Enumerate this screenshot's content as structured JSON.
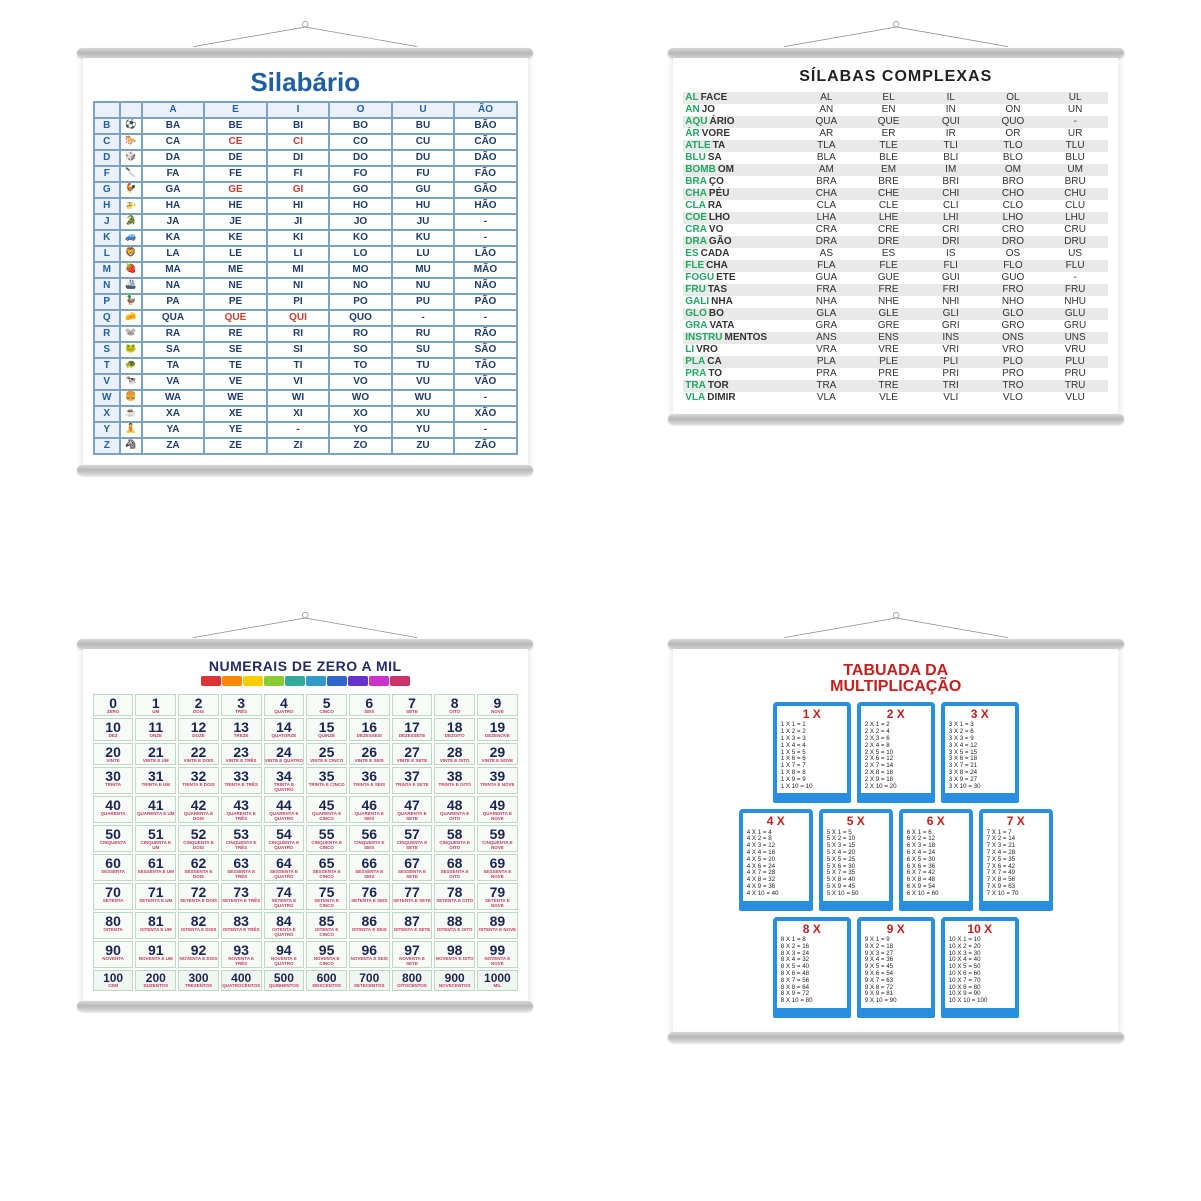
{
  "colors": {
    "background": "#ffffff",
    "rail": "#c8c8c8",
    "sil_title": "#1f5fa6",
    "sil_border": "#7aa3c7",
    "sil_text": "#1f3d6b",
    "sil_red": "#d33b2f",
    "sc_prefix": "#1fa860",
    "sc_stripe": "#e9e9e9",
    "num_title": "#232a6b",
    "num_border": "#bcd9c8",
    "num_number": "#1b2452",
    "num_word": "#c73a5f",
    "tab_title": "#c4201e",
    "tab_border": "#2a8ee0"
  },
  "silabario": {
    "title": "Silabário",
    "headers": [
      "",
      "",
      "A",
      "E",
      "I",
      "O",
      "U",
      "ÃO"
    ],
    "rows": [
      {
        "l": "B",
        "i": "⚽",
        "c": [
          "BA",
          "BE",
          "BI",
          "BO",
          "BU",
          "BÃO"
        ],
        "red": []
      },
      {
        "l": "C",
        "i": "🐎",
        "c": [
          "CA",
          "CE",
          "CI",
          "CO",
          "CU",
          "CÃO"
        ],
        "red": [
          1,
          2
        ]
      },
      {
        "l": "D",
        "i": "🎲",
        "c": [
          "DA",
          "DE",
          "DI",
          "DO",
          "DU",
          "DÃO"
        ],
        "red": []
      },
      {
        "l": "F",
        "i": "🔪",
        "c": [
          "FA",
          "FE",
          "FI",
          "FO",
          "FU",
          "FÃO"
        ],
        "red": []
      },
      {
        "l": "G",
        "i": "🐓",
        "c": [
          "GA",
          "GE",
          "GI",
          "GO",
          "GU",
          "GÃO"
        ],
        "red": [
          1,
          2
        ]
      },
      {
        "l": "H",
        "i": "🚁",
        "c": [
          "HA",
          "HE",
          "HI",
          "HO",
          "HU",
          "HÃO"
        ],
        "red": []
      },
      {
        "l": "J",
        "i": "🐊",
        "c": [
          "JA",
          "JE",
          "JI",
          "JO",
          "JU",
          "-"
        ],
        "red": []
      },
      {
        "l": "K",
        "i": "🚙",
        "c": [
          "KA",
          "KE",
          "KI",
          "KO",
          "KU",
          "-"
        ],
        "red": []
      },
      {
        "l": "L",
        "i": "🦁",
        "c": [
          "LA",
          "LE",
          "LI",
          "LO",
          "LU",
          "LÃO"
        ],
        "red": []
      },
      {
        "l": "M",
        "i": "🍓",
        "c": [
          "MA",
          "ME",
          "MI",
          "MO",
          "MU",
          "MÃO"
        ],
        "red": []
      },
      {
        "l": "N",
        "i": "🚢",
        "c": [
          "NA",
          "NE",
          "NI",
          "NO",
          "NU",
          "NÃO"
        ],
        "red": []
      },
      {
        "l": "P",
        "i": "🦆",
        "c": [
          "PA",
          "PE",
          "PI",
          "PO",
          "PU",
          "PÃO"
        ],
        "red": []
      },
      {
        "l": "Q",
        "i": "🧀",
        "c": [
          "QUA",
          "QUE",
          "QUI",
          "QUO",
          "-",
          "-"
        ],
        "red": [
          1,
          2
        ]
      },
      {
        "l": "R",
        "i": "🐭",
        "c": [
          "RA",
          "RE",
          "RI",
          "RO",
          "RU",
          "RÃO"
        ],
        "red": []
      },
      {
        "l": "S",
        "i": "🐸",
        "c": [
          "SA",
          "SE",
          "SI",
          "SO",
          "SU",
          "SÃO"
        ],
        "red": []
      },
      {
        "l": "T",
        "i": "🐢",
        "c": [
          "TA",
          "TE",
          "TI",
          "TO",
          "TU",
          "TÃO"
        ],
        "red": []
      },
      {
        "l": "V",
        "i": "🐄",
        "c": [
          "VA",
          "VE",
          "VI",
          "VO",
          "VU",
          "VÃO"
        ],
        "red": []
      },
      {
        "l": "W",
        "i": "🍔",
        "c": [
          "WA",
          "WE",
          "WI",
          "WO",
          "WU",
          "-"
        ],
        "red": []
      },
      {
        "l": "X",
        "i": "☕",
        "c": [
          "XA",
          "XE",
          "XI",
          "XO",
          "XU",
          "XÃO"
        ],
        "red": []
      },
      {
        "l": "Y",
        "i": "🧘",
        "c": [
          "YA",
          "YE",
          "-",
          "YO",
          "YU",
          "-"
        ],
        "red": []
      },
      {
        "l": "Z",
        "i": "🦓",
        "c": [
          "ZA",
          "ZE",
          "ZI",
          "ZO",
          "ZU",
          "ZÃO"
        ],
        "red": []
      }
    ]
  },
  "silabas_complexas": {
    "title": "SÍLABAS COMPLEXAS",
    "rows": [
      {
        "pre": "AL",
        "rest": "FACE",
        "syl": [
          "AL",
          "EL",
          "IL",
          "OL",
          "UL"
        ]
      },
      {
        "pre": "AN",
        "rest": "JO",
        "syl": [
          "AN",
          "EN",
          "IN",
          "ON",
          "UN"
        ]
      },
      {
        "pre": "AQU",
        "rest": "ÁRIO",
        "syl": [
          "QUA",
          "QUE",
          "QUI",
          "QUO",
          "-"
        ]
      },
      {
        "pre": "ÁR",
        "rest": "VORE",
        "syl": [
          "AR",
          "ER",
          "IR",
          "OR",
          "UR"
        ]
      },
      {
        "pre": "ATLE",
        "rest": "TA",
        "syl": [
          "TLA",
          "TLE",
          "TLI",
          "TLO",
          "TLU"
        ]
      },
      {
        "pre": "BLU",
        "rest": "SA",
        "syl": [
          "BLA",
          "BLE",
          "BLI",
          "BLO",
          "BLU"
        ]
      },
      {
        "pre": "BOMB",
        "rest": "OM",
        "syl": [
          "AM",
          "EM",
          "IM",
          "OM",
          "UM"
        ]
      },
      {
        "pre": "BRA",
        "rest": "ÇO",
        "syl": [
          "BRA",
          "BRE",
          "BRI",
          "BRO",
          "BRU"
        ]
      },
      {
        "pre": "CHA",
        "rest": "PÉU",
        "syl": [
          "CHA",
          "CHE",
          "CHI",
          "CHO",
          "CHU"
        ]
      },
      {
        "pre": "CLA",
        "rest": "RA",
        "syl": [
          "CLA",
          "CLE",
          "CLI",
          "CLO",
          "CLU"
        ]
      },
      {
        "pre": "COE",
        "rest": "LHO",
        "syl": [
          "LHA",
          "LHE",
          "LHI",
          "LHO",
          "LHU"
        ]
      },
      {
        "pre": "CRA",
        "rest": "VO",
        "syl": [
          "CRA",
          "CRE",
          "CRI",
          "CRO",
          "CRU"
        ]
      },
      {
        "pre": "DRA",
        "rest": "GÃO",
        "syl": [
          "DRA",
          "DRE",
          "DRI",
          "DRO",
          "DRU"
        ]
      },
      {
        "pre": "ES",
        "rest": "CADA",
        "syl": [
          "AS",
          "ES",
          "IS",
          "OS",
          "US"
        ]
      },
      {
        "pre": "FLE",
        "rest": "CHA",
        "syl": [
          "FLA",
          "FLE",
          "FLI",
          "FLO",
          "FLU"
        ]
      },
      {
        "pre": "FOGU",
        "rest": "ETE",
        "syl": [
          "GUA",
          "GUE",
          "GUI",
          "GUO",
          "-"
        ]
      },
      {
        "pre": "FRU",
        "rest": "TAS",
        "syl": [
          "FRA",
          "FRE",
          "FRI",
          "FRO",
          "FRU"
        ]
      },
      {
        "pre": "GALI",
        "rest": "NHA",
        "syl": [
          "NHA",
          "NHE",
          "NHI",
          "NHO",
          "NHU"
        ]
      },
      {
        "pre": "GLO",
        "rest": "BO",
        "syl": [
          "GLA",
          "GLE",
          "GLI",
          "GLO",
          "GLU"
        ]
      },
      {
        "pre": "GRA",
        "rest": "VATA",
        "syl": [
          "GRA",
          "GRE",
          "GRI",
          "GRO",
          "GRU"
        ]
      },
      {
        "pre": "INSTRU",
        "rest": "MENTOS",
        "syl": [
          "ANS",
          "ENS",
          "INS",
          "ONS",
          "UNS"
        ]
      },
      {
        "pre": "LI",
        "rest": "VRO",
        "syl": [
          "VRA",
          "VRE",
          "VRI",
          "VRO",
          "VRU"
        ]
      },
      {
        "pre": "PLA",
        "rest": "CA",
        "syl": [
          "PLA",
          "PLE",
          "PLI",
          "PLO",
          "PLU"
        ]
      },
      {
        "pre": "PRA",
        "rest": "TO",
        "syl": [
          "PRA",
          "PRE",
          "PRI",
          "PRO",
          "PRU"
        ]
      },
      {
        "pre": "TRA",
        "rest": "TOR",
        "syl": [
          "TRA",
          "TRE",
          "TRI",
          "TRO",
          "TRU"
        ]
      },
      {
        "pre": "VLA",
        "rest": "DIMIR",
        "syl": [
          "VLA",
          "VLE",
          "VLI",
          "VLO",
          "VLU"
        ]
      }
    ]
  },
  "numerais": {
    "title": "NUMERAIS DE ZERO A MIL",
    "train_colors": [
      "#d33",
      "#f80",
      "#fc0",
      "#8c3",
      "#3a9",
      "#39c",
      "#36c",
      "#63c",
      "#c3c",
      "#c36"
    ],
    "words0": [
      "ZERO",
      "UM",
      "DOIS",
      "TRÊS",
      "QUATRO",
      "CINCO",
      "SEIS",
      "SETE",
      "OITO",
      "NOVE"
    ],
    "tens": [
      "DEZ",
      "ONZE",
      "DOZE",
      "TREZE",
      "QUATORZE",
      "QUINZE",
      "DEZESSEIS",
      "DEZESSETE",
      "DEZOITO",
      "DEZENOVE"
    ],
    "decades": [
      "VINTE",
      "TRINTA",
      "QUARENTA",
      "CINQUENTA",
      "SESSENTA",
      "SETENTA",
      "OITENTA",
      "NOVENTA"
    ],
    "hundreds_row": [
      {
        "n": "100",
        "w": "CEM"
      },
      {
        "n": "200",
        "w": "DUZENTOS"
      },
      {
        "n": "300",
        "w": "TREZENTOS"
      },
      {
        "n": "400",
        "w": "QUATROCENTOS"
      },
      {
        "n": "500",
        "w": "QUINHENTOS"
      },
      {
        "n": "600",
        "w": "SEISCENTOS"
      },
      {
        "n": "700",
        "w": "SETECENTOS"
      },
      {
        "n": "800",
        "w": "OITOCENTOS"
      },
      {
        "n": "900",
        "w": "NOVECENTOS"
      },
      {
        "n": "1000",
        "w": "MIL"
      }
    ]
  },
  "tabuada": {
    "title_l1": "TABUADA DA",
    "title_l2": "MULTIPLICAÇÃO",
    "groups": [
      [
        1,
        2,
        3
      ],
      [
        4,
        5,
        6,
        7
      ],
      [
        8,
        9,
        10
      ]
    ]
  }
}
